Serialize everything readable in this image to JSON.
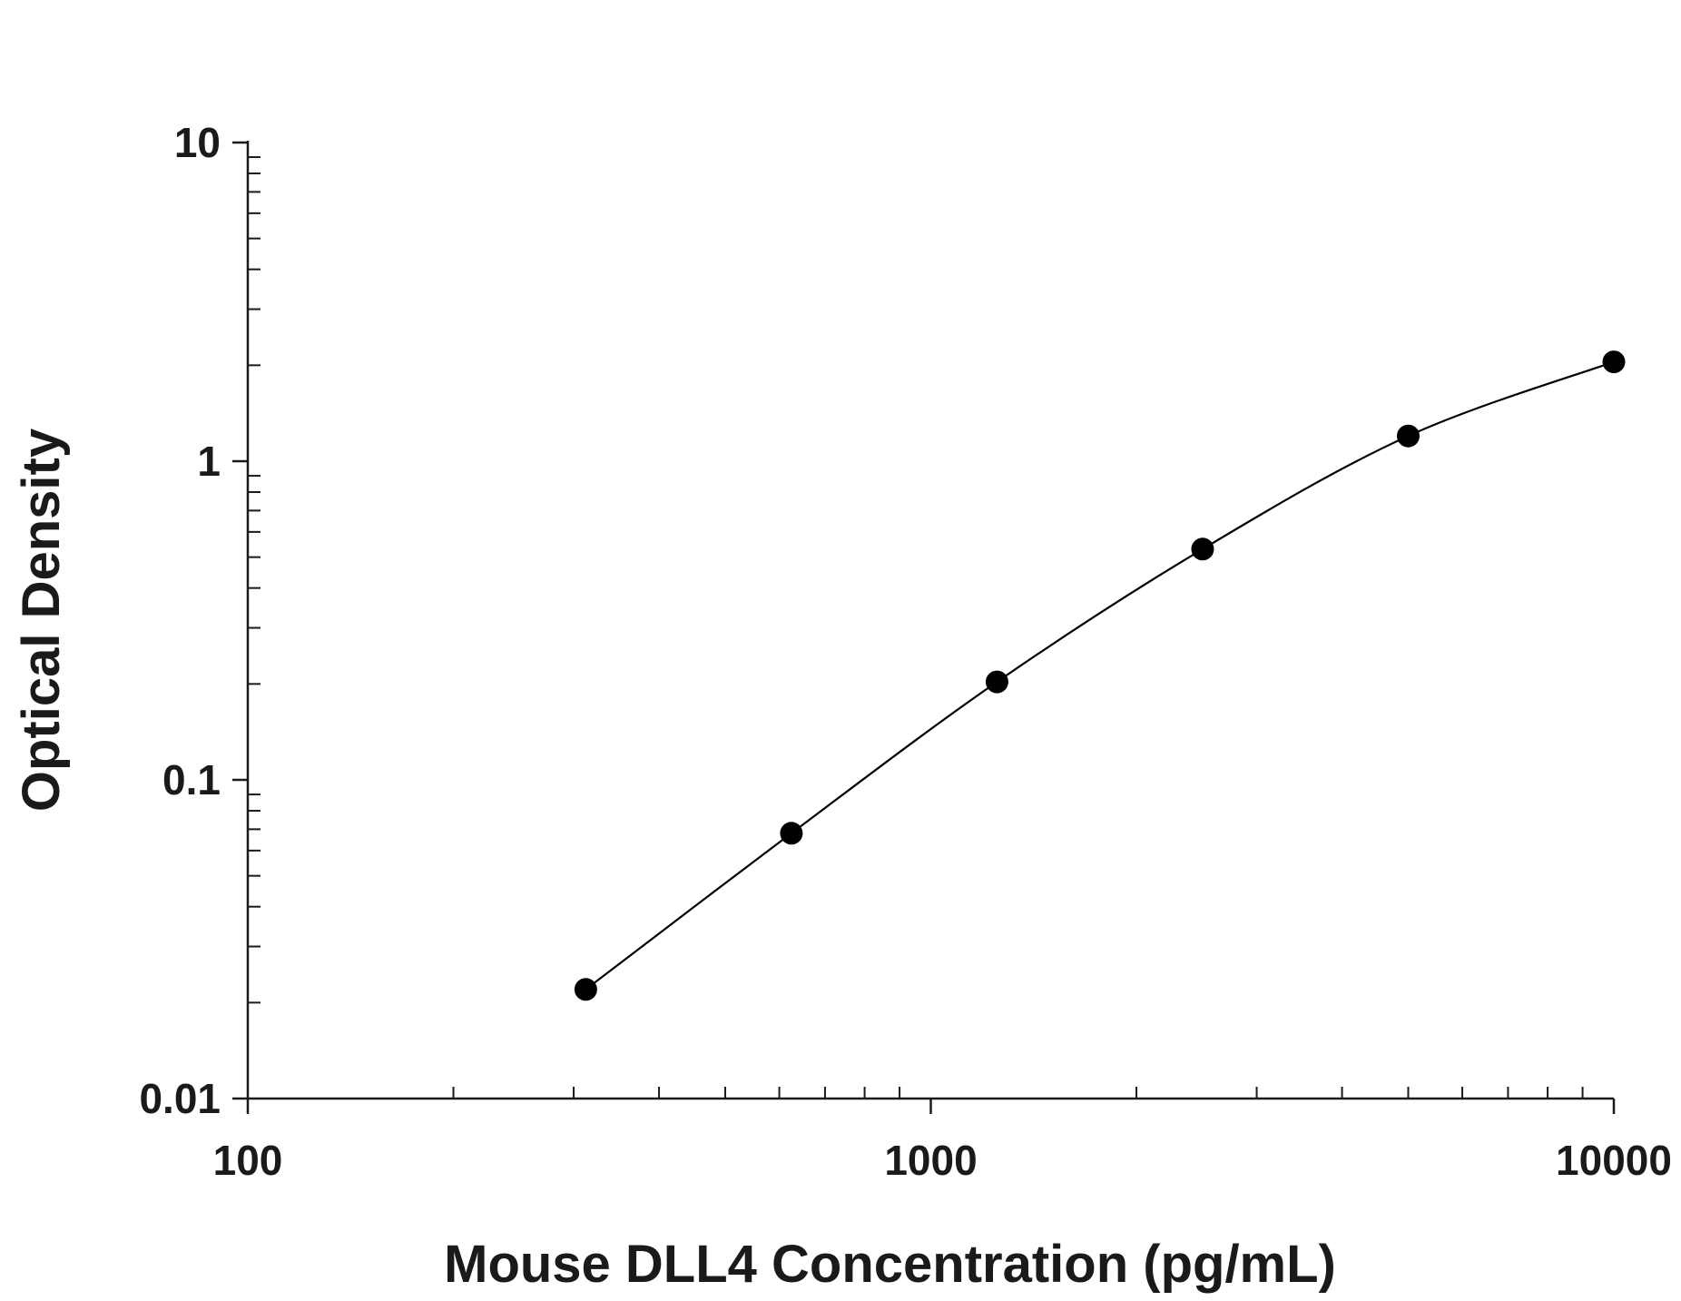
{
  "chart_data": {
    "type": "scatter",
    "title": "",
    "xlabel": "Mouse DLL4 Concentration (pg/mL)",
    "ylabel": "Optical Density",
    "x_scale": "log",
    "y_scale": "log",
    "xlim": [
      100,
      10000
    ],
    "ylim": [
      0.01,
      10
    ],
    "x_ticks": [
      "100",
      "1000",
      "10000"
    ],
    "y_ticks": [
      "0.01",
      "0.1",
      "1",
      "10"
    ],
    "grid": false,
    "legend": "none",
    "fit_curve": true,
    "marker_color": "#000000",
    "line_color": "#000000",
    "series": [
      {
        "x": [
          312.5,
          625,
          1250,
          2500,
          5000,
          10000
        ],
        "y": [
          0.022,
          0.068,
          0.203,
          0.53,
          1.2,
          2.05
        ]
      }
    ]
  }
}
